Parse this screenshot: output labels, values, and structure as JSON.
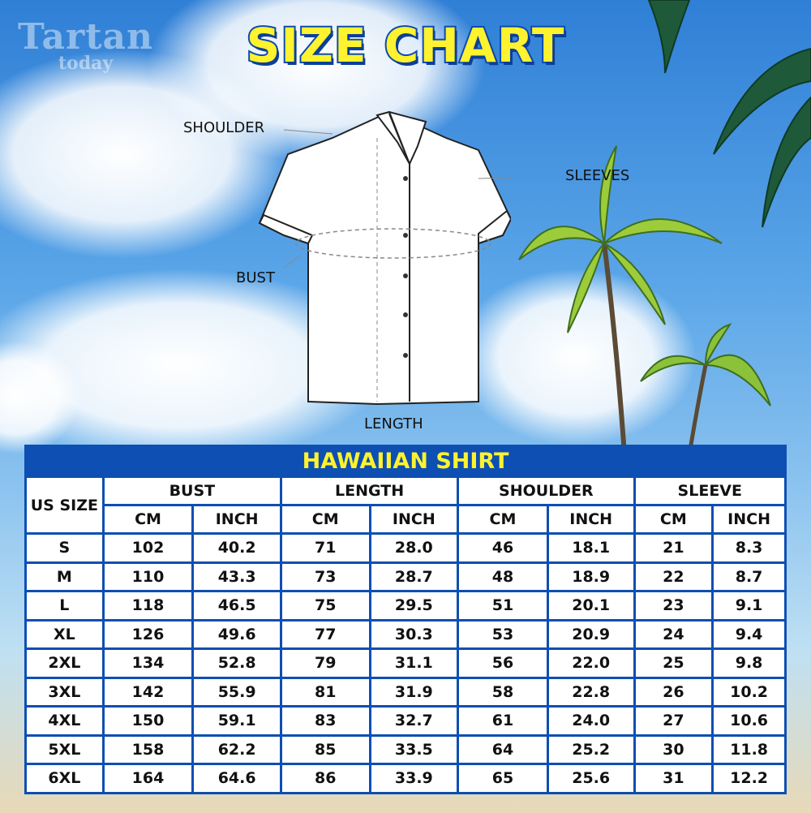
{
  "watermark": {
    "line1": "Tartan",
    "line2": "today"
  },
  "title": "SIZE CHART",
  "diagram_labels": {
    "shoulder": "SHOULDER",
    "sleeves": "SLEEVES",
    "bust": "BUST",
    "length": "LENGTH"
  },
  "table": {
    "caption": "HAWAIIAN SHIRT",
    "size_header": "US SIZE",
    "groups": [
      "BUST",
      "LENGTH",
      "SHOULDER",
      "SLEEVE"
    ],
    "units": [
      "CM",
      "INCH"
    ],
    "rows": [
      [
        "S",
        "102",
        "40.2",
        "71",
        "28.0",
        "46",
        "18.1",
        "21",
        "8.3"
      ],
      [
        "M",
        "110",
        "43.3",
        "73",
        "28.7",
        "48",
        "18.9",
        "22",
        "8.7"
      ],
      [
        "L",
        "118",
        "46.5",
        "75",
        "29.5",
        "51",
        "20.1",
        "23",
        "9.1"
      ],
      [
        "XL",
        "126",
        "49.6",
        "77",
        "30.3",
        "53",
        "20.9",
        "24",
        "9.4"
      ],
      [
        "2XL",
        "134",
        "52.8",
        "79",
        "31.1",
        "56",
        "22.0",
        "25",
        "9.8"
      ],
      [
        "3XL",
        "142",
        "55.9",
        "81",
        "31.9",
        "58",
        "22.8",
        "26",
        "10.2"
      ],
      [
        "4XL",
        "150",
        "59.1",
        "83",
        "32.7",
        "61",
        "24.0",
        "27",
        "10.6"
      ],
      [
        "5XL",
        "158",
        "62.2",
        "85",
        "33.5",
        "64",
        "25.2",
        "30",
        "11.8"
      ],
      [
        "6XL",
        "164",
        "64.6",
        "86",
        "33.9",
        "65",
        "25.6",
        "31",
        "12.2"
      ]
    ]
  },
  "colors": {
    "table_border": "#0d4fb2",
    "title_yellow": "#fff22e"
  }
}
